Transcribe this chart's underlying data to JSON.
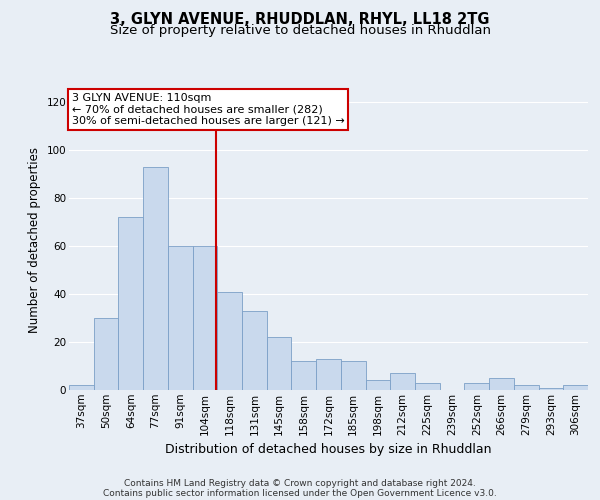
{
  "title": "3, GLYN AVENUE, RHUDDLAN, RHYL, LL18 2TG",
  "subtitle": "Size of property relative to detached houses in Rhuddlan",
  "xlabel": "Distribution of detached houses by size in Rhuddlan",
  "ylabel": "Number of detached properties",
  "categories": [
    "37sqm",
    "50sqm",
    "64sqm",
    "77sqm",
    "91sqm",
    "104sqm",
    "118sqm",
    "131sqm",
    "145sqm",
    "158sqm",
    "172sqm",
    "185sqm",
    "198sqm",
    "212sqm",
    "225sqm",
    "239sqm",
    "252sqm",
    "266sqm",
    "279sqm",
    "293sqm",
    "306sqm"
  ],
  "values": [
    2,
    30,
    72,
    93,
    60,
    60,
    41,
    33,
    22,
    12,
    13,
    12,
    4,
    7,
    3,
    0,
    3,
    5,
    2,
    1,
    2
  ],
  "bar_color": "#c9d9ed",
  "bar_edge_color": "#7b9fc7",
  "background_color": "#e8eef5",
  "plot_bg_color": "#e8eef5",
  "grid_color": "#ffffff",
  "annotation_line1": "3 GLYN AVENUE: 110sqm",
  "annotation_line2": "← 70% of detached houses are smaller (282)",
  "annotation_line3": "30% of semi-detached houses are larger (121) →",
  "annotation_box_edge_color": "#cc0000",
  "vline_color": "#cc0000",
  "vline_x": 5.43,
  "ylim": [
    0,
    125
  ],
  "yticks": [
    0,
    20,
    40,
    60,
    80,
    100,
    120
  ],
  "footer_line1": "Contains HM Land Registry data © Crown copyright and database right 2024.",
  "footer_line2": "Contains public sector information licensed under the Open Government Licence v3.0.",
  "title_fontsize": 10.5,
  "subtitle_fontsize": 9.5,
  "xlabel_fontsize": 9,
  "ylabel_fontsize": 8.5,
  "tick_fontsize": 7.5,
  "annotation_fontsize": 8,
  "footer_fontsize": 6.5
}
